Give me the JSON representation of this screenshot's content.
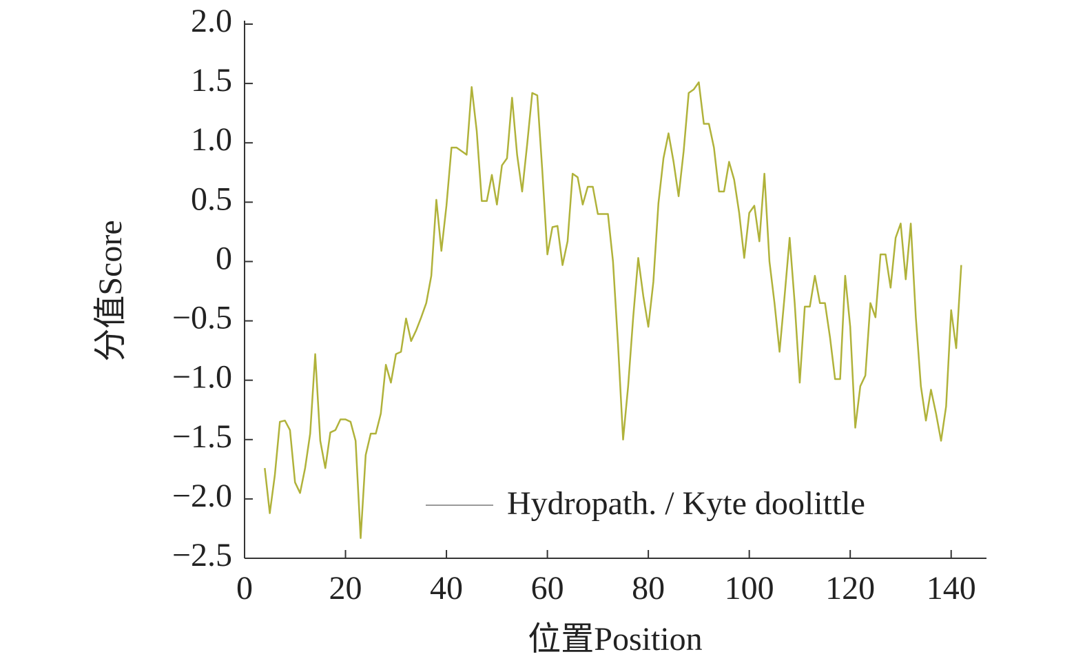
{
  "chart_data": {
    "type": "line",
    "x_label": "位置Position",
    "y_label": "分值Score",
    "x": [
      4,
      5,
      6,
      7,
      8,
      9,
      10,
      11,
      12,
      13,
      14,
      15,
      16,
      17,
      18,
      19,
      20,
      21,
      22,
      23,
      24,
      25,
      26,
      27,
      28,
      29,
      30,
      31,
      32,
      33,
      34,
      35,
      36,
      37,
      38,
      39,
      40,
      41,
      42,
      43,
      44,
      45,
      46,
      47,
      48,
      49,
      50,
      51,
      52,
      53,
      54,
      55,
      56,
      57,
      58,
      59,
      60,
      61,
      62,
      63,
      64,
      65,
      66,
      67,
      68,
      69,
      70,
      71,
      72,
      73,
      74,
      75,
      76,
      77,
      78,
      79,
      80,
      81,
      82,
      83,
      84,
      85,
      86,
      87,
      88,
      89,
      90,
      91,
      92,
      93,
      94,
      95,
      96,
      97,
      98,
      99,
      100,
      101,
      102,
      103,
      104,
      105,
      106,
      107,
      108,
      109,
      110,
      111,
      112,
      113,
      114,
      115,
      116,
      117,
      118,
      119,
      120,
      121,
      122,
      123,
      124,
      125,
      126,
      127,
      128,
      129,
      130,
      131,
      132,
      133,
      134,
      135,
      136,
      137,
      138,
      139,
      140,
      141,
      142
    ],
    "series": [
      {
        "name": "Hydropath. / Kyte doolittle",
        "color": "#b0b23a",
        "legend_color": "#999999",
        "values": [
          -1.74,
          -2.12,
          -1.8,
          -1.35,
          -1.34,
          -1.42,
          -1.86,
          -1.95,
          -1.74,
          -1.45,
          -0.78,
          -1.51,
          -1.74,
          -1.44,
          -1.42,
          -1.33,
          -1.33,
          -1.35,
          -1.51,
          -2.33,
          -1.63,
          -1.45,
          -1.45,
          -1.28,
          -0.87,
          -1.02,
          -0.78,
          -0.76,
          -0.48,
          -0.67,
          -0.58,
          -0.47,
          -0.35,
          -0.12,
          0.52,
          0.09,
          0.47,
          0.96,
          0.96,
          0.93,
          0.9,
          1.47,
          1.1,
          0.51,
          0.51,
          0.73,
          0.48,
          0.81,
          0.87,
          1.38,
          0.9,
          0.59,
          0.99,
          1.42,
          1.4,
          0.76,
          0.06,
          0.29,
          0.3,
          -0.03,
          0.17,
          0.74,
          0.71,
          0.48,
          0.63,
          0.63,
          0.4,
          0.4,
          0.4,
          0,
          -0.7,
          -1.5,
          -1.05,
          -0.47,
          0.03,
          -0.29,
          -0.55,
          -0.17,
          0.49,
          0.87,
          1.08,
          0.84,
          0.55,
          0.93,
          1.42,
          1.45,
          1.51,
          1.16,
          1.16,
          0.96,
          0.59,
          0.59,
          0.84,
          0.69,
          0.41,
          0.03,
          0.41,
          0.47,
          0.17,
          0.74,
          0,
          -0.35,
          -0.76,
          -0.29,
          0.2,
          -0.35,
          -1.02,
          -0.38,
          -0.38,
          -0.12,
          -0.35,
          -0.35,
          -0.64,
          -0.99,
          -0.99,
          -0.12,
          -0.55,
          -1.4,
          -1.05,
          -0.96,
          -0.35,
          -0.47,
          0.06,
          0.06,
          -0.22,
          0.2,
          0.32,
          -0.15,
          0.32,
          -0.47,
          -1.05,
          -1.34,
          -1.08,
          -1.28,
          -1.51,
          -1.22,
          -0.41,
          -0.73,
          -0.03
        ]
      }
    ],
    "xlim": [
      0,
      147
    ],
    "xticks": [
      0,
      20,
      40,
      60,
      80,
      100,
      120,
      140
    ],
    "ylim": [
      -2.5,
      2.0
    ],
    "yticks": [
      {
        "value": -2.5,
        "label": "−2.5"
      },
      {
        "value": -2.0,
        "label": "−2.0"
      },
      {
        "value": -1.5,
        "label": "−1.5"
      },
      {
        "value": -1.0,
        "label": "−1.0"
      },
      {
        "value": -0.5,
        "label": "−0.5"
      },
      0,
      {
        "value": 0.5,
        "label": "0.5"
      },
      {
        "value": 1.0,
        "label": "1.0"
      },
      {
        "value": 1.5,
        "label": "1.5"
      },
      {
        "value": 2.0,
        "label": "2.0"
      }
    ],
    "legend_position": "lower right",
    "grid": false
  }
}
